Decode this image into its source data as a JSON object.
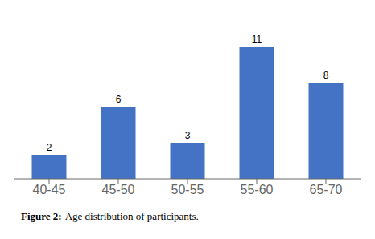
{
  "chart_data": {
    "type": "bar",
    "categories": [
      "40-45",
      "45-50",
      "50-55",
      "55-60",
      "65-70"
    ],
    "values": [
      2,
      6,
      3,
      11,
      8
    ],
    "color": "#4472C4",
    "ylim": [
      0,
      13
    ],
    "grid": false,
    "data_labels": true,
    "tick_labels": "x",
    "annotations": [
      "Figure 2:",
      "Age distribution of participants."
    ]
  }
}
